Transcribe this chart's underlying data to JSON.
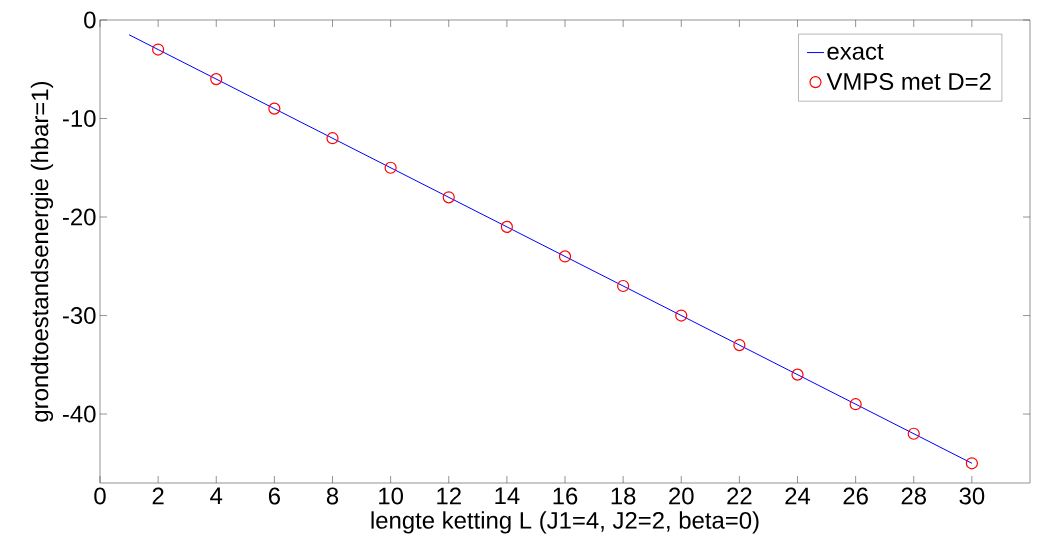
{
  "chart_data": {
    "type": "line",
    "xlabel": "lengte ketting L (J1=4, J2=2, beta=0)",
    "ylabel": "grondtoestandsenergie (hbar=1)",
    "xlim": [
      0,
      32
    ],
    "xticks": [
      0,
      2,
      4,
      6,
      8,
      10,
      12,
      14,
      16,
      18,
      20,
      22,
      24,
      26,
      28,
      30
    ],
    "ylim": [
      -47,
      0
    ],
    "yticks": [
      -40,
      -30,
      -20,
      -10,
      0
    ],
    "grid": false,
    "legend": "top right",
    "series": [
      {
        "name": "exact",
        "color": "#0000ff",
        "marker": "none",
        "line_style": "solid",
        "x": [
          1,
          30
        ],
        "values": [
          -1.5,
          -45
        ]
      },
      {
        "name": "VMPS met D=2",
        "type": "scatter",
        "color": "#ff0000",
        "marker": "circle",
        "x": [
          2,
          4,
          6,
          8,
          10,
          12,
          14,
          16,
          18,
          20,
          22,
          24,
          26,
          28,
          30
        ],
        "values": [
          -3,
          -6,
          -9,
          -12,
          -15,
          -18,
          -21,
          -24,
          -27,
          -30,
          -33,
          -36,
          -39,
          -42,
          -45
        ]
      }
    ]
  }
}
